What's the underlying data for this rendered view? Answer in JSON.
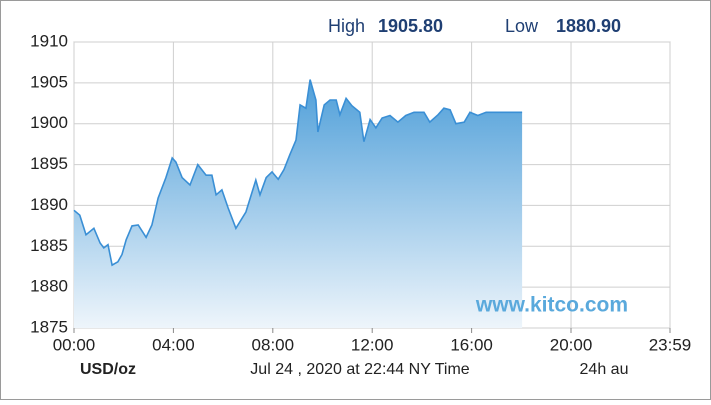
{
  "header": {
    "high_label": "High",
    "high": "1905.80",
    "low_label": "Low",
    "low": "1880.90"
  },
  "chart_data": {
    "type": "area",
    "color": "#3a8fd5",
    "x": [
      0,
      14,
      29,
      48,
      63,
      72,
      82,
      92,
      106,
      116,
      126,
      140,
      155,
      174,
      188,
      203,
      222,
      237,
      246,
      261,
      280,
      299,
      319,
      333,
      343,
      357,
      372,
      391,
      415,
      439,
      449,
      464,
      478,
      493,
      507,
      521,
      536,
      546,
      560,
      570,
      584,
      589,
      604,
      618,
      633,
      642,
      657,
      671,
      690,
      700,
      715,
      729,
      744,
      763,
      782,
      801,
      821,
      845,
      859,
      879,
      893,
      908,
      922,
      942,
      956,
      975,
      995,
      1028,
      1082
    ],
    "values": [
      1889.4,
      1888.8,
      1886.4,
      1887.2,
      1885.4,
      1884.8,
      1885.2,
      1882.7,
      1883.1,
      1884.0,
      1885.8,
      1887.5,
      1887.6,
      1886.1,
      1887.6,
      1890.9,
      1893.4,
      1895.8,
      1895.3,
      1893.4,
      1892.5,
      1895.0,
      1893.7,
      1893.7,
      1891.3,
      1891.9,
      1889.7,
      1887.2,
      1889.2,
      1893.1,
      1891.3,
      1893.4,
      1894.1,
      1893.2,
      1894.4,
      1896.2,
      1898.0,
      1902.3,
      1901.9,
      1905.4,
      1902.9,
      1899.0,
      1902.3,
      1902.9,
      1902.9,
      1901.1,
      1903.1,
      1902.2,
      1901.4,
      1897.8,
      1900.5,
      1899.5,
      1900.7,
      1901.0,
      1900.2,
      1901.0,
      1901.4,
      1901.4,
      1900.2,
      1901.1,
      1901.9,
      1901.7,
      1900.0,
      1900.2,
      1901.4,
      1901.0,
      1901.4,
      1901.4,
      1901.4
    ],
    "xlim": [
      0,
      1439
    ],
    "xticks": [
      {
        "value": 0,
        "label": "00:00"
      },
      {
        "value": 240,
        "label": "04:00"
      },
      {
        "value": 480,
        "label": "08:00"
      },
      {
        "value": 720,
        "label": "12:00"
      },
      {
        "value": 960,
        "label": "16:00"
      },
      {
        "value": 1200,
        "label": "20:00"
      },
      {
        "value": 1439,
        "label": "23:59"
      }
    ],
    "ylim": [
      1875,
      1910
    ],
    "yticks": [
      1875,
      1880,
      1885,
      1890,
      1895,
      1900,
      1905,
      1910
    ],
    "grid": true,
    "unit": "USD/oz",
    "timestamp": "Jul 24 , 2020 at 22:44 NY Time",
    "range_note": "24h au",
    "watermark": "www.kitco.com"
  }
}
